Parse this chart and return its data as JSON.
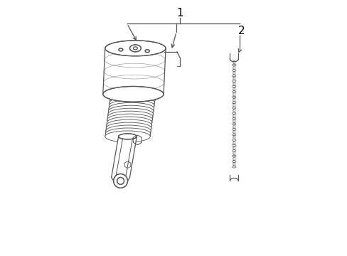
{
  "background_color": "#ffffff",
  "line_color": "#555555",
  "label_color": "#000000",
  "fig_width": 4.89,
  "fig_height": 3.6,
  "label1": "1",
  "label2": "2"
}
